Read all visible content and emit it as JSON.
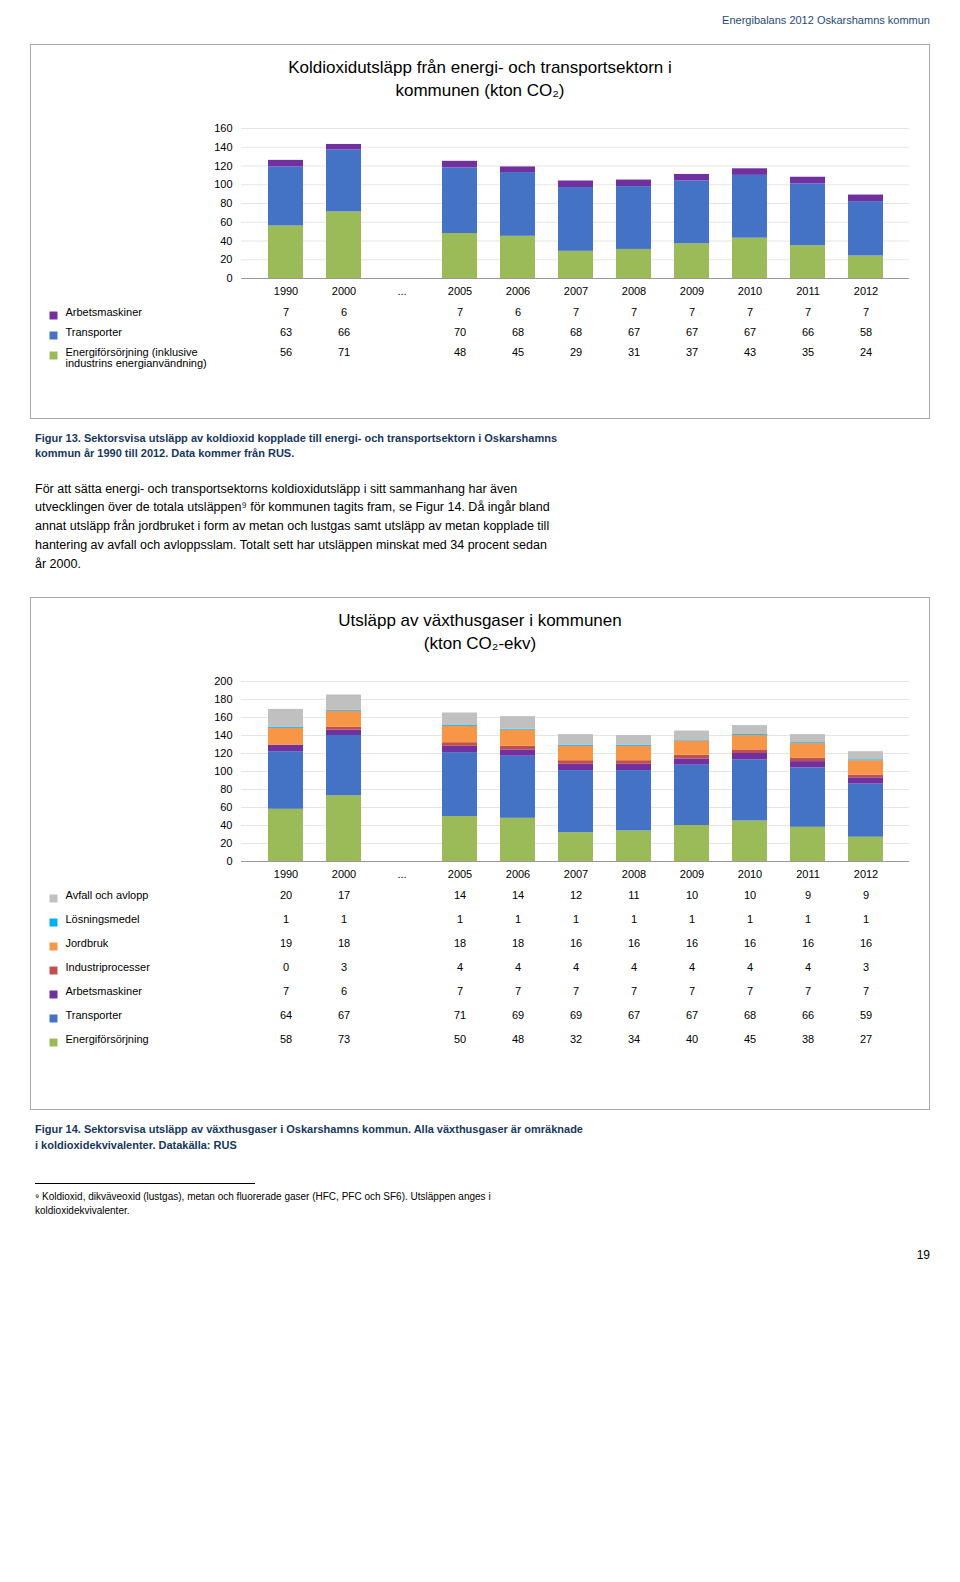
{
  "chart_data": [
    {
      "type": "bar",
      "stacked": true,
      "grid": true,
      "data_labels": true,
      "title": "Koldioxidutsläpp från energi- och transportsektorn i\nkommunen (kton CO₂)",
      "categories": [
        "1990",
        "2000",
        "...",
        "2005",
        "2006",
        "2007",
        "2008",
        "2009",
        "2010",
        "2011",
        "2012"
      ],
      "series": [
        {
          "name": "Energiförsörjning (inklusive\nindustrins energianvändning)",
          "color": "#9BBB59",
          "values": [
            56,
            71,
            0,
            48,
            45,
            29,
            31,
            37,
            43,
            35,
            24
          ],
          "value_labels": [
            "56",
            "71",
            null,
            "48",
            "45",
            "29",
            "31",
            "37",
            "43",
            "35",
            "24"
          ]
        },
        {
          "name": "Transporter",
          "color": "#4472C4",
          "values": [
            63,
            66,
            0,
            70,
            68,
            68,
            67,
            67,
            67,
            66,
            58
          ],
          "value_labels": [
            "63",
            "66",
            null,
            "70",
            "68",
            "68",
            "67",
            "67",
            "67",
            "66",
            "58"
          ]
        },
        {
          "name": "Arbetsmaskiner",
          "color": "#7030A0",
          "values": [
            7,
            6,
            0,
            7,
            6,
            7,
            7,
            7,
            7,
            7,
            7
          ],
          "value_labels": [
            "7",
            "6",
            null,
            "7",
            "6",
            "7",
            "7",
            "7",
            "7",
            "7",
            "7"
          ]
        }
      ],
      "ylim": [
        0,
        160
      ],
      "yticks": [
        0,
        20,
        40,
        60,
        80,
        100,
        120,
        140,
        160
      ],
      "caption": "Figur 13. Sektorsvisa utsläpp av koldioxid kopplade till energi- och transportsektorn i Oskarshamns\nkommun år 1990 till 2012. Data kommer från RUS.",
      "annotations": [
        "Energibalans 2012 Oskarshamns kommun",
        "För att sätta energi- och transportsektorns koldioxidutsläpp i sitt sammanhang har även\nutvecklingen över de totala utsläppen⁹ för kommunen tagits fram, se Figur 14. Då ingår bland\nannat utsläpp från jordbruket i form av metan och lustgas samt utsläpp av metan kopplade till\nhantering av avfall och avloppsslam. Totalt sett har utsläppen minskat med 34 procent sedan\når 2000."
      ]
    },
    {
      "type": "bar",
      "stacked": true,
      "grid": true,
      "data_labels": true,
      "title": "Utsläpp av växthusgaser i kommunen\n(kton CO₂-ekv)",
      "categories": [
        "1990",
        "2000",
        "...",
        "2005",
        "2006",
        "2007",
        "2008",
        "2009",
        "2010",
        "2011",
        "2012"
      ],
      "series": [
        {
          "name": "Energiförsörjning",
          "color": "#9BBB59",
          "values": [
            58,
            73,
            0,
            50,
            48,
            32,
            34,
            40,
            45,
            38,
            27
          ],
          "value_labels": [
            "58",
            "73",
            null,
            "50",
            "48",
            "32",
            "34",
            "40",
            "45",
            "38",
            "27"
          ]
        },
        {
          "name": "Transporter",
          "color": "#4472C4",
          "values": [
            64,
            67,
            0,
            71,
            69,
            69,
            67,
            67,
            68,
            66,
            59
          ],
          "value_labels": [
            "64",
            "67",
            null,
            "71",
            "69",
            "69",
            "67",
            "67",
            "68",
            "66",
            "59"
          ]
        },
        {
          "name": "Arbetsmaskiner",
          "color": "#7030A0",
          "values": [
            7,
            6,
            0,
            7,
            7,
            7,
            7,
            7,
            7,
            7,
            7
          ],
          "value_labels": [
            "7",
            "6",
            null,
            "7",
            "7",
            "7",
            "7",
            "7",
            "7",
            "7",
            "7"
          ]
        },
        {
          "name": "Industriprocesser",
          "color": "#C0504D",
          "values": [
            0,
            3,
            0,
            4,
            4,
            4,
            4,
            4,
            4,
            4,
            3
          ],
          "value_labels": [
            "0",
            "3",
            null,
            "4",
            "4",
            "4",
            "4",
            "4",
            "4",
            "4",
            "3"
          ]
        },
        {
          "name": "Jordbruk",
          "color": "#F79646",
          "values": [
            19,
            18,
            0,
            18,
            18,
            16,
            16,
            16,
            16,
            16,
            16
          ],
          "value_labels": [
            "19",
            "18",
            null,
            "18",
            "18",
            "16",
            "16",
            "16",
            "16",
            "16",
            "16"
          ]
        },
        {
          "name": "Lösningsmedel",
          "color": "#00B0F0",
          "values": [
            1,
            1,
            0,
            1,
            1,
            1,
            1,
            1,
            1,
            1,
            1
          ],
          "value_labels": [
            "1",
            "1",
            null,
            "1",
            "1",
            "1",
            "1",
            "1",
            "1",
            "1",
            "1"
          ]
        },
        {
          "name": "Avfall och avlopp",
          "color": "#C0C0C0",
          "values": [
            20,
            17,
            0,
            14,
            14,
            12,
            11,
            10,
            10,
            9,
            9
          ],
          "value_labels": [
            "20",
            "17",
            null,
            "14",
            "14",
            "12",
            "11",
            "10",
            "10",
            "9",
            "9"
          ]
        }
      ],
      "ylim": [
        0,
        200
      ],
      "yticks": [
        0,
        20,
        40,
        60,
        80,
        100,
        120,
        140,
        160,
        180,
        200
      ],
      "caption": "Figur 14. Sektorsvisa utsläpp av växthusgaser i Oskarshamns kommun. Alla växthusgaser är omräknade\ni koldioxidekvivalenter. Datakälla: RUS",
      "annotations": [
        "⁹ Koldioxid, dikväveoxid (lustgas), metan och fluorerade gaser (HFC, PFC och SF6). Utsläppen anges i\nkoldioxidekvivalenter.",
        "19"
      ]
    }
  ]
}
